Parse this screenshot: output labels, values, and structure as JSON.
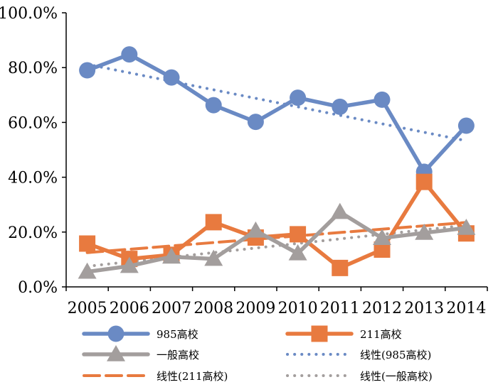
{
  "chart_data": {
    "type": "line",
    "title": "",
    "xlabel": "",
    "ylabel": "",
    "ylim": [
      0,
      100
    ],
    "ytick_values": [
      0,
      20,
      40,
      60,
      80,
      100
    ],
    "ytick_labels": [
      "0.0%",
      "20.0%",
      "40.0%",
      "60.0%",
      "80.0%",
      "100.0%"
    ],
    "categories": [
      "2005",
      "2006",
      "2007",
      "2008",
      "2009",
      "2010",
      "2011",
      "2012",
      "2013",
      "2014"
    ],
    "series": [
      {
        "name": "985高校",
        "marker": "circle",
        "color": "#6a8ac4",
        "values": [
          79.0,
          84.8,
          76.4,
          66.3,
          60.2,
          69.0,
          65.7,
          68.3,
          42.0,
          58.8
        ]
      },
      {
        "name": "211高校",
        "marker": "square",
        "color": "#e87a3f",
        "values": [
          15.8,
          10.2,
          11.7,
          23.6,
          18.0,
          19.2,
          6.9,
          13.6,
          38.3,
          19.5
        ]
      },
      {
        "name": "一般高校",
        "marker": "triangle",
        "color": "#a39e9d",
        "values": [
          5.5,
          7.6,
          11.0,
          10.2,
          20.5,
          12.2,
          27.3,
          17.8,
          19.7,
          21.5
        ]
      }
    ],
    "trendlines": [
      {
        "name": "线性(985高校)",
        "style": "dotted",
        "color": "#6a8ac4",
        "start": 81.2,
        "end": 53.3
      },
      {
        "name": "线性(211高校)",
        "style": "dashed",
        "color": "#e87a3f",
        "start": 12.5,
        "end": 23.5
      },
      {
        "name": "线性(一般高校)",
        "style": "dotted",
        "color": "#a39e9d",
        "start": 7.5,
        "end": 22.5
      }
    ],
    "legend_position": "bottom"
  }
}
